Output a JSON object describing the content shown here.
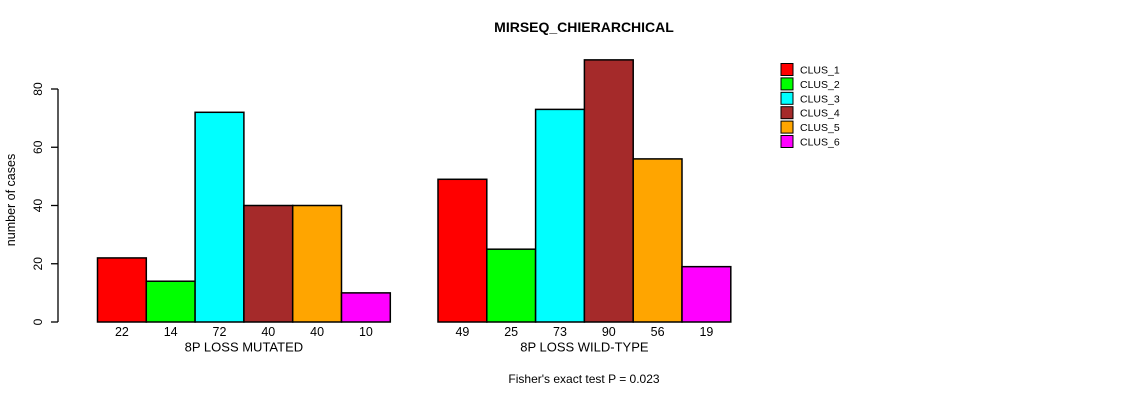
{
  "chart_data": {
    "type": "bar",
    "title": "MIRSEQ_CHIERARCHICAL",
    "ylabel": "number of cases",
    "xlabel": "",
    "categories": [
      "8P LOSS MUTATED",
      "8P LOSS WILD-TYPE"
    ],
    "series": [
      {
        "name": "CLUS_1",
        "color": "#FF0000",
        "values": [
          22,
          49
        ]
      },
      {
        "name": "CLUS_2",
        "color": "#00FF00",
        "values": [
          14,
          25
        ]
      },
      {
        "name": "CLUS_3",
        "color": "#00FFFF",
        "values": [
          72,
          73
        ]
      },
      {
        "name": "CLUS_4",
        "color": "#A52A2A",
        "values": [
          40,
          90
        ]
      },
      {
        "name": "CLUS_5",
        "color": "#FFA500",
        "values": [
          40,
          56
        ]
      },
      {
        "name": "CLUS_6",
        "color": "#FF00FF",
        "values": [
          10,
          19
        ]
      }
    ],
    "yticks": [
      0,
      20,
      40,
      60,
      80
    ],
    "ylim": [
      0,
      93
    ],
    "grid": false,
    "legend_position": "right",
    "bar_value_labels": true,
    "bar_border_color": "#000000",
    "background_color": "#FFFFFF",
    "annotation": "Fisher's exact test P = 0.023"
  }
}
